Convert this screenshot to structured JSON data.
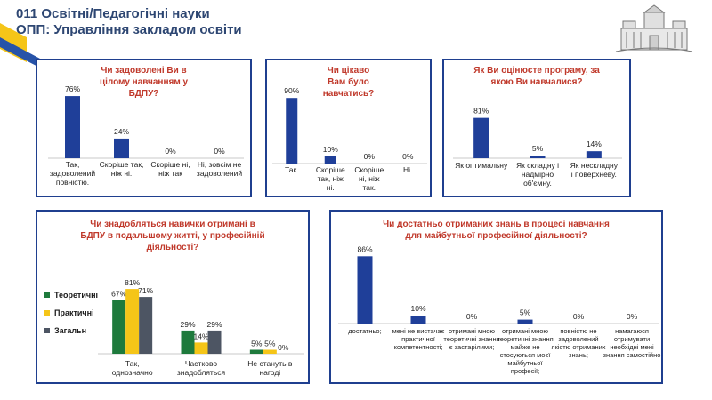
{
  "header": {
    "line1": "011 Освітні/Педагогічні науки",
    "line2": "ОПП: Управління закладом освіти"
  },
  "colors": {
    "blue": "#1f3f99",
    "green": "#1e7a3c",
    "yellow": "#f5c518",
    "gray": "#4d5563",
    "question": "#c0392b",
    "frame": "#1f3f8f",
    "accent_yellow": "#f5c518",
    "accent_blue": "#2753a8"
  },
  "logo": {
    "icon": "university-building-icon"
  },
  "chart_data": [
    {
      "type": "bar",
      "title": "Чи задоволені Ви в цілому навчанням у БДПУ?",
      "categories": [
        "Так, задоволений повністю.",
        "Скоріше так, ніж ні.",
        "Скоріше ні, ніж так",
        "Ні, зовсім не задоволений"
      ],
      "values": [
        76,
        24,
        0,
        0
      ],
      "value_labels": [
        "76%",
        "24%",
        "0%",
        "0%"
      ],
      "ylim": [
        0,
        100
      ]
    },
    {
      "type": "bar",
      "title": "Чи цікаво Вам було навчатись?",
      "categories": [
        "Так.",
        "Скоріше так, ніж ні.",
        "Скоріше ні, ніж так.",
        "Ні."
      ],
      "values": [
        90,
        10,
        0,
        0
      ],
      "value_labels": [
        "90%",
        "10%",
        "0%",
        "0%"
      ],
      "ylim": [
        0,
        100
      ]
    },
    {
      "type": "bar",
      "title": "Як Ви оцінюєте програму, за якою Ви навчалися?",
      "categories": [
        "Як оптимальну",
        "Як складну і надмірно об'ємну.",
        "Як нескладну і поверхневу."
      ],
      "values": [
        81,
        5,
        14
      ],
      "value_labels": [
        "81%",
        "5%",
        "14%"
      ],
      "ylim": [
        0,
        100
      ]
    },
    {
      "type": "bar",
      "title": "Чи знадобляться навички отримані в БДПУ в подальшому житті, у професійній діяльності?",
      "categories": [
        "Так, однозначно",
        "Частково знадобляться",
        "Не стануть в нагоді"
      ],
      "series": [
        {
          "name": "Теоретичні",
          "values": [
            67,
            29,
            5
          ],
          "value_labels": [
            "67%",
            "29%",
            "5%"
          ]
        },
        {
          "name": "Практичні",
          "values": [
            81,
            14,
            5
          ],
          "value_labels": [
            "81%",
            "14%",
            "5%"
          ]
        },
        {
          "name": "Загальн",
          "values": [
            71,
            29,
            0
          ],
          "value_labels": [
            "71%",
            "29%",
            "0%"
          ]
        }
      ],
      "legend": "left",
      "ylim": [
        0,
        100
      ]
    },
    {
      "type": "bar",
      "title": "Чи достатньо отриманих знань в процесі навчання для майбутньої професійної діяльності?",
      "categories": [
        "достатньо;",
        "мені не вистачає практичної компетентності;",
        "отримані мною теоретичні знання є застарілими;",
        "отримані мною теоретичні знання майже не стосуються моєї майбутньої професії;",
        "повністю не задоволений якістю отриманих знань;",
        "намагаюся отримувати необхідні мені знання самостійно"
      ],
      "values": [
        86,
        10,
        0,
        5,
        0,
        0
      ],
      "value_labels": [
        "86%",
        "10%",
        "0%",
        "5%",
        "0%",
        "0%"
      ],
      "ylim": [
        0,
        100
      ]
    }
  ]
}
